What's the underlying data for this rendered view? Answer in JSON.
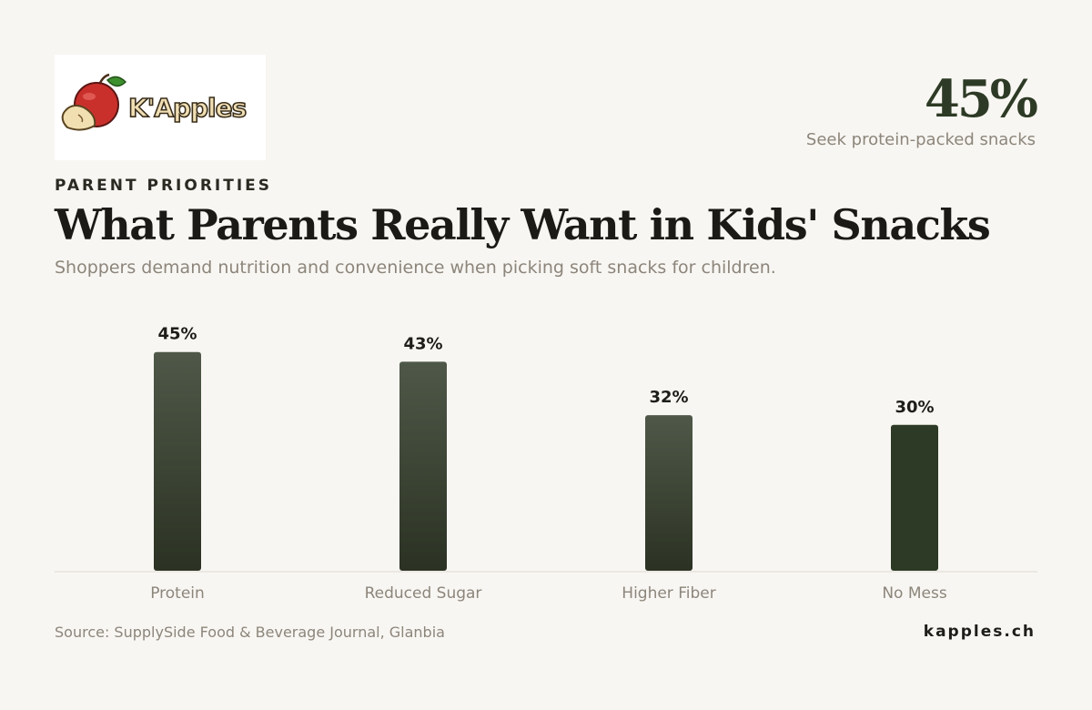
{
  "brand": {
    "logo_text": "K'Apples",
    "site": "kapples.ch"
  },
  "kpi": {
    "value": "45%",
    "label": "Seek protein-packed snacks"
  },
  "eyebrow": "PARENT PRIORITIES",
  "title": "What Parents Really Want in Kids' Snacks",
  "subtitle": "Shoppers demand nutrition and convenience when picking soft snacks for children.",
  "source": "Source: SupplySide Food & Beverage Journal, Glanbia",
  "colors": {
    "bar_top": "#4f5848",
    "bar_bottom": "#2b3223",
    "bar_solid": "#2d3a25",
    "baseline": "#dedad3"
  },
  "chart_data": {
    "type": "bar",
    "categories": [
      "Protein",
      "Reduced Sugar",
      "Higher Fiber",
      "No Mess"
    ],
    "values": [
      45,
      43,
      32,
      30
    ],
    "value_labels": [
      "45%",
      "43%",
      "32%",
      "30%"
    ],
    "unit": "%",
    "title": "",
    "xlabel": "",
    "ylabel": "",
    "grid": false
  }
}
